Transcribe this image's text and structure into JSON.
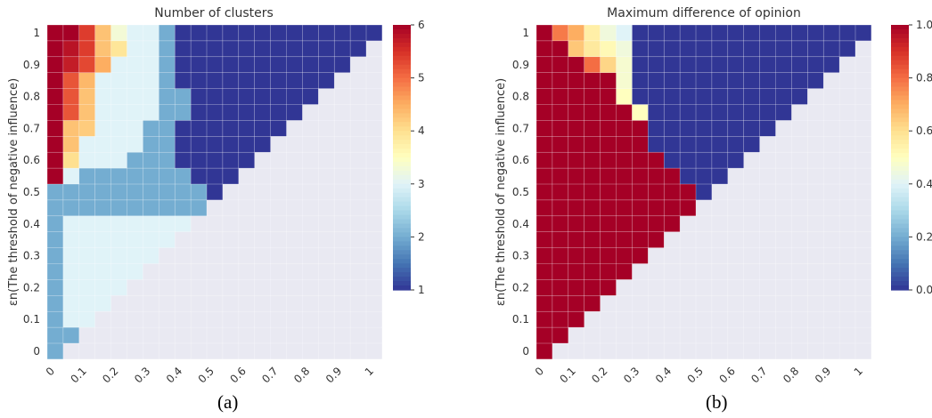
{
  "chart_data": [
    {
      "type": "heatmap",
      "title": "Number of clusters",
      "xlabel": "εp(The threshold of positive influence)",
      "ylabel": "εn(The threshold of negative influence)",
      "x_ticks": [
        "0",
        "0.1",
        "0.2",
        "0.3",
        "0.4",
        "0.5",
        "0.6",
        "0.7",
        "0.8",
        "0.9",
        "1"
      ],
      "y_ticks": [
        "0",
        "0.1",
        "0.2",
        "0.3",
        "0.4",
        "0.5",
        "0.6",
        "0.7",
        "0.8",
        "0.9",
        "1"
      ],
      "colorbar_ticks": [
        "1",
        "2",
        "3",
        "4",
        "5",
        "6"
      ],
      "vmin": 1,
      "vmax": 6,
      "grid_rows": 21,
      "grid_cols": 21,
      "rows_bottom_to_top": [
        [
          2
        ],
        [
          2,
          2
        ],
        [
          2,
          3,
          3
        ],
        [
          2,
          3,
          3,
          3
        ],
        [
          2,
          3,
          3,
          3,
          3
        ],
        [
          2,
          3,
          3,
          3,
          3,
          3
        ],
        [
          2,
          3,
          3,
          3,
          3,
          3,
          3
        ],
        [
          2,
          3,
          3,
          3,
          3,
          3,
          3,
          3
        ],
        [
          2,
          3,
          3,
          3,
          3,
          3,
          3,
          3,
          3
        ],
        [
          2,
          2,
          2,
          2,
          2,
          2,
          2,
          2,
          2,
          2
        ],
        [
          2,
          2,
          2,
          2,
          2,
          2,
          2,
          2,
          2,
          2,
          1
        ],
        [
          6,
          3,
          2,
          2,
          2,
          2,
          2,
          2,
          2,
          1,
          1,
          1
        ],
        [
          6,
          4,
          3,
          3,
          3,
          2,
          2,
          2,
          1,
          1,
          1,
          1,
          1
        ],
        [
          6,
          4.3,
          3,
          3,
          3,
          3,
          2,
          2,
          1,
          1,
          1,
          1,
          1,
          1
        ],
        [
          6,
          4.3,
          4.2,
          3,
          3,
          3,
          2,
          2,
          1,
          1,
          1,
          1,
          1,
          1,
          1
        ],
        [
          6,
          5.2,
          4.3,
          3,
          3,
          3,
          3,
          2,
          2,
          1,
          1,
          1,
          1,
          1,
          1,
          1
        ],
        [
          6,
          5.2,
          4.3,
          3,
          3,
          3,
          3,
          2,
          2,
          1,
          1,
          1,
          1,
          1,
          1,
          1,
          1
        ],
        [
          6,
          5.2,
          4.4,
          3,
          3,
          3,
          3,
          2,
          1,
          1,
          1,
          1,
          1,
          1,
          1,
          1,
          1,
          1
        ],
        [
          6,
          5.7,
          5.3,
          4.5,
          3,
          3,
          3,
          2,
          1,
          1,
          1,
          1,
          1,
          1,
          1,
          1,
          1,
          1,
          1
        ],
        [
          6,
          5.8,
          5.4,
          4.3,
          3.9,
          3,
          3,
          2,
          1,
          1,
          1,
          1,
          1,
          1,
          1,
          1,
          1,
          1,
          1,
          1
        ],
        [
          6,
          6,
          5.4,
          4.3,
          3.3,
          3,
          3,
          2,
          1,
          1,
          1,
          1,
          1,
          1,
          1,
          1,
          1,
          1,
          1,
          1,
          1
        ]
      ]
    },
    {
      "type": "heatmap",
      "title": "Maximum difference of opinion",
      "xlabel": "εp(The threshold of positive influence)",
      "ylabel": "εn(The threshold of negative influence)",
      "x_ticks": [
        "0",
        "0.1",
        "0.2",
        "0.3",
        "0.4",
        "0.5",
        "0.6",
        "0.7",
        "0.8",
        "0.9",
        "1"
      ],
      "y_ticks": [
        "0",
        "0.1",
        "0.2",
        "0.3",
        "0.4",
        "0.5",
        "0.6",
        "0.7",
        "0.8",
        "0.9",
        "1"
      ],
      "colorbar_ticks": [
        "0.0",
        "0.2",
        "0.4",
        "0.6",
        "0.8",
        "1.0"
      ],
      "vmin": 0,
      "vmax": 1,
      "grid_rows": 21,
      "grid_cols": 21,
      "rows_bottom_to_top": [
        [
          1
        ],
        [
          1,
          1
        ],
        [
          1,
          1,
          1
        ],
        [
          1,
          1,
          1,
          1
        ],
        [
          1,
          1,
          1,
          1,
          1
        ],
        [
          1,
          1,
          1,
          1,
          1,
          1
        ],
        [
          1,
          1,
          1,
          1,
          1,
          1,
          1
        ],
        [
          1,
          1,
          1,
          1,
          1,
          1,
          1,
          1
        ],
        [
          1,
          1,
          1,
          1,
          1,
          1,
          1,
          1,
          1
        ],
        [
          1,
          1,
          1,
          1,
          1,
          1,
          1,
          1,
          1,
          1
        ],
        [
          1,
          1,
          1,
          1,
          1,
          1,
          1,
          1,
          1,
          1,
          0
        ],
        [
          1,
          1,
          1,
          1,
          1,
          1,
          1,
          1,
          1,
          0,
          0,
          0
        ],
        [
          1,
          1,
          1,
          1,
          1,
          1,
          1,
          1,
          0,
          0,
          0,
          0,
          0
        ],
        [
          1,
          1,
          1,
          1,
          1,
          1,
          1,
          0,
          0,
          0,
          0,
          0,
          0,
          0
        ],
        [
          1,
          1,
          1,
          1,
          1,
          1,
          1,
          0,
          0,
          0,
          0,
          0,
          0,
          0,
          0
        ],
        [
          1,
          1,
          1,
          1,
          1,
          1,
          0.5,
          0,
          0,
          0,
          0,
          0,
          0,
          0,
          0,
          0
        ],
        [
          1,
          1,
          1,
          1,
          1,
          0.5,
          0,
          0,
          0,
          0,
          0,
          0,
          0,
          0,
          0,
          0,
          0
        ],
        [
          1,
          1,
          1,
          1,
          1,
          0.47,
          0,
          0,
          0,
          0,
          0,
          0,
          0,
          0,
          0,
          0,
          0,
          0
        ],
        [
          1,
          1,
          1,
          0.8,
          0.62,
          0.47,
          0,
          0,
          0,
          0,
          0,
          0,
          0,
          0,
          0,
          0,
          0,
          0,
          0
        ],
        [
          1,
          1,
          0.65,
          0.57,
          0.52,
          0.45,
          0,
          0,
          0,
          0,
          0,
          0,
          0,
          0,
          0,
          0,
          0,
          0,
          0,
          0
        ],
        [
          1,
          0.78,
          0.7,
          0.55,
          0.45,
          0.4,
          0,
          0,
          0,
          0,
          0,
          0,
          0,
          0,
          0,
          0,
          0,
          0,
          0,
          0,
          0
        ]
      ]
    }
  ],
  "panel_labels": [
    "(a)",
    "(b)"
  ],
  "colors": {
    "empty_cell": "#e9e9f2",
    "grid_line": "#ffffff",
    "text": "#333333"
  }
}
